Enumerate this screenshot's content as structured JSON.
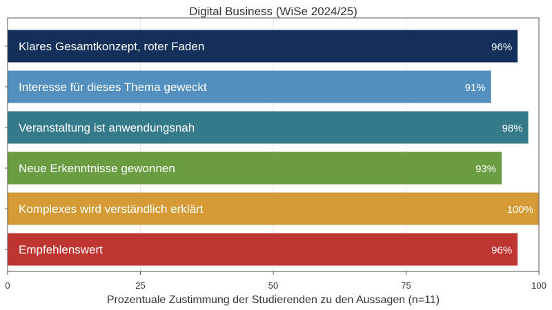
{
  "chart_data": {
    "type": "bar",
    "orientation": "horizontal",
    "title": "Digital Business (WiSe 2024/25)",
    "xlabel": "Prozentuale Zustimmung der Studierenden zu den Aussagen (n=11)",
    "ylabel": "",
    "xlim": [
      0,
      100
    ],
    "xticks": [
      0,
      25,
      50,
      75,
      100
    ],
    "grid": true,
    "categories": [
      "Klares Gesamtkonzept, roter Faden",
      "Interesse für dieses Thema geweckt",
      "Veranstaltung ist anwendungsnah",
      "Neue Erkenntnisse gewonnen",
      "Komplexes wird verständlich erklärt",
      "Empfehlenswert"
    ],
    "values": [
      96,
      91,
      98,
      93,
      100,
      96
    ],
    "value_labels": [
      "96%",
      "91%",
      "98%",
      "93%",
      "100%",
      "96%"
    ],
    "colors": [
      "#123059",
      "#5390bf",
      "#347a8a",
      "#6a9d42",
      "#d59b36",
      "#be3531"
    ]
  }
}
